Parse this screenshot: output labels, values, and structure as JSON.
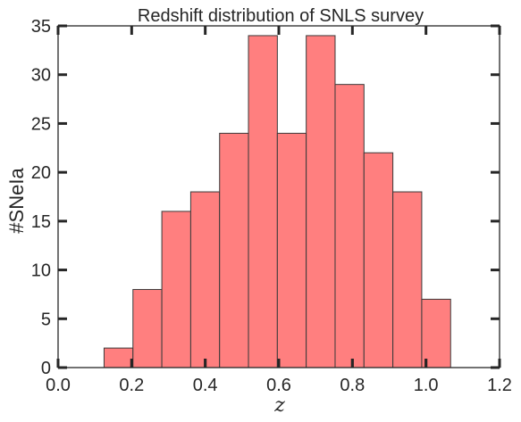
{
  "chart_data": {
    "type": "bar",
    "title": "Redshift distribution of SNLS survey",
    "xlabel": "z",
    "ylabel": "#SNeIa",
    "bin_edges": [
      0.125,
      0.2035,
      0.282,
      0.3605,
      0.439,
      0.5175,
      0.596,
      0.6745,
      0.753,
      0.8315,
      0.91,
      0.9885,
      1.067
    ],
    "values": [
      2,
      8,
      16,
      18,
      24,
      34,
      24,
      34,
      29,
      22,
      18,
      7
    ],
    "xlim": [
      0.0,
      1.2
    ],
    "ylim": [
      0,
      35
    ],
    "xticks": [
      "0.0",
      "0.2",
      "0.4",
      "0.6",
      "0.8",
      "1.0",
      "1.2"
    ],
    "yticks": [
      "0",
      "5",
      "10",
      "15",
      "20",
      "25",
      "30",
      "35"
    ],
    "rug_marks": [
      0.2,
      0.4,
      0.6,
      0.8,
      1.0
    ],
    "bar_color": "#ff7f7f",
    "bar_edge_color": "#3a3a3a",
    "rug_color": "#8b0000",
    "grid": false
  }
}
